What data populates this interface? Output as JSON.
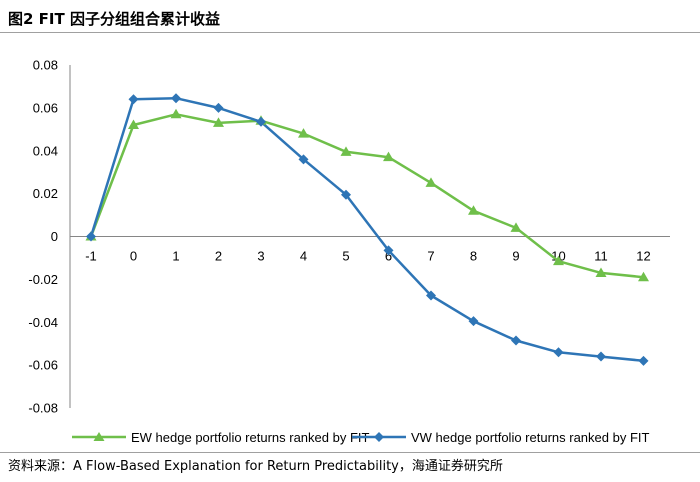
{
  "header": {
    "figure_title": "图2  FIT 因子分组组合累计收益"
  },
  "footer": {
    "source_prefix": "资料来源：",
    "source_text": "A Flow-Based Explanation for Return Predictability",
    "source_suffix": "，海通证券研究所"
  },
  "chart_data": {
    "type": "line",
    "title": "图2  FIT 因子分组组合累计收益",
    "xlabel": "",
    "ylabel": "",
    "categories": [
      "-1",
      "0",
      "1",
      "2",
      "3",
      "4",
      "5",
      "6",
      "7",
      "8",
      "9",
      "10",
      "11",
      "12"
    ],
    "yticks": [
      "0.08",
      "0.06",
      "0.04",
      "0.02",
      "0",
      "-0.02",
      "-0.04",
      "-0.06",
      "-0.08"
    ],
    "ylim": [
      -0.08,
      0.08
    ],
    "grid": false,
    "legend_position": "bottom",
    "series": [
      {
        "name": "EW hedge portfolio returns ranked by FIT",
        "color": "#6fbf4a",
        "marker": "triangle",
        "values": [
          0.0,
          0.052,
          0.057,
          0.053,
          0.054,
          0.048,
          0.0395,
          0.037,
          0.025,
          0.012,
          0.004,
          -0.0115,
          -0.017,
          -0.019
        ]
      },
      {
        "name": "VW hedge portfolio returns ranked by FIT",
        "color": "#2e75b6",
        "marker": "diamond",
        "values": [
          0.0,
          0.064,
          0.0645,
          0.06,
          0.0535,
          0.036,
          0.0195,
          -0.0065,
          -0.0275,
          -0.0395,
          -0.0485,
          -0.054,
          -0.056,
          -0.058
        ]
      }
    ]
  }
}
